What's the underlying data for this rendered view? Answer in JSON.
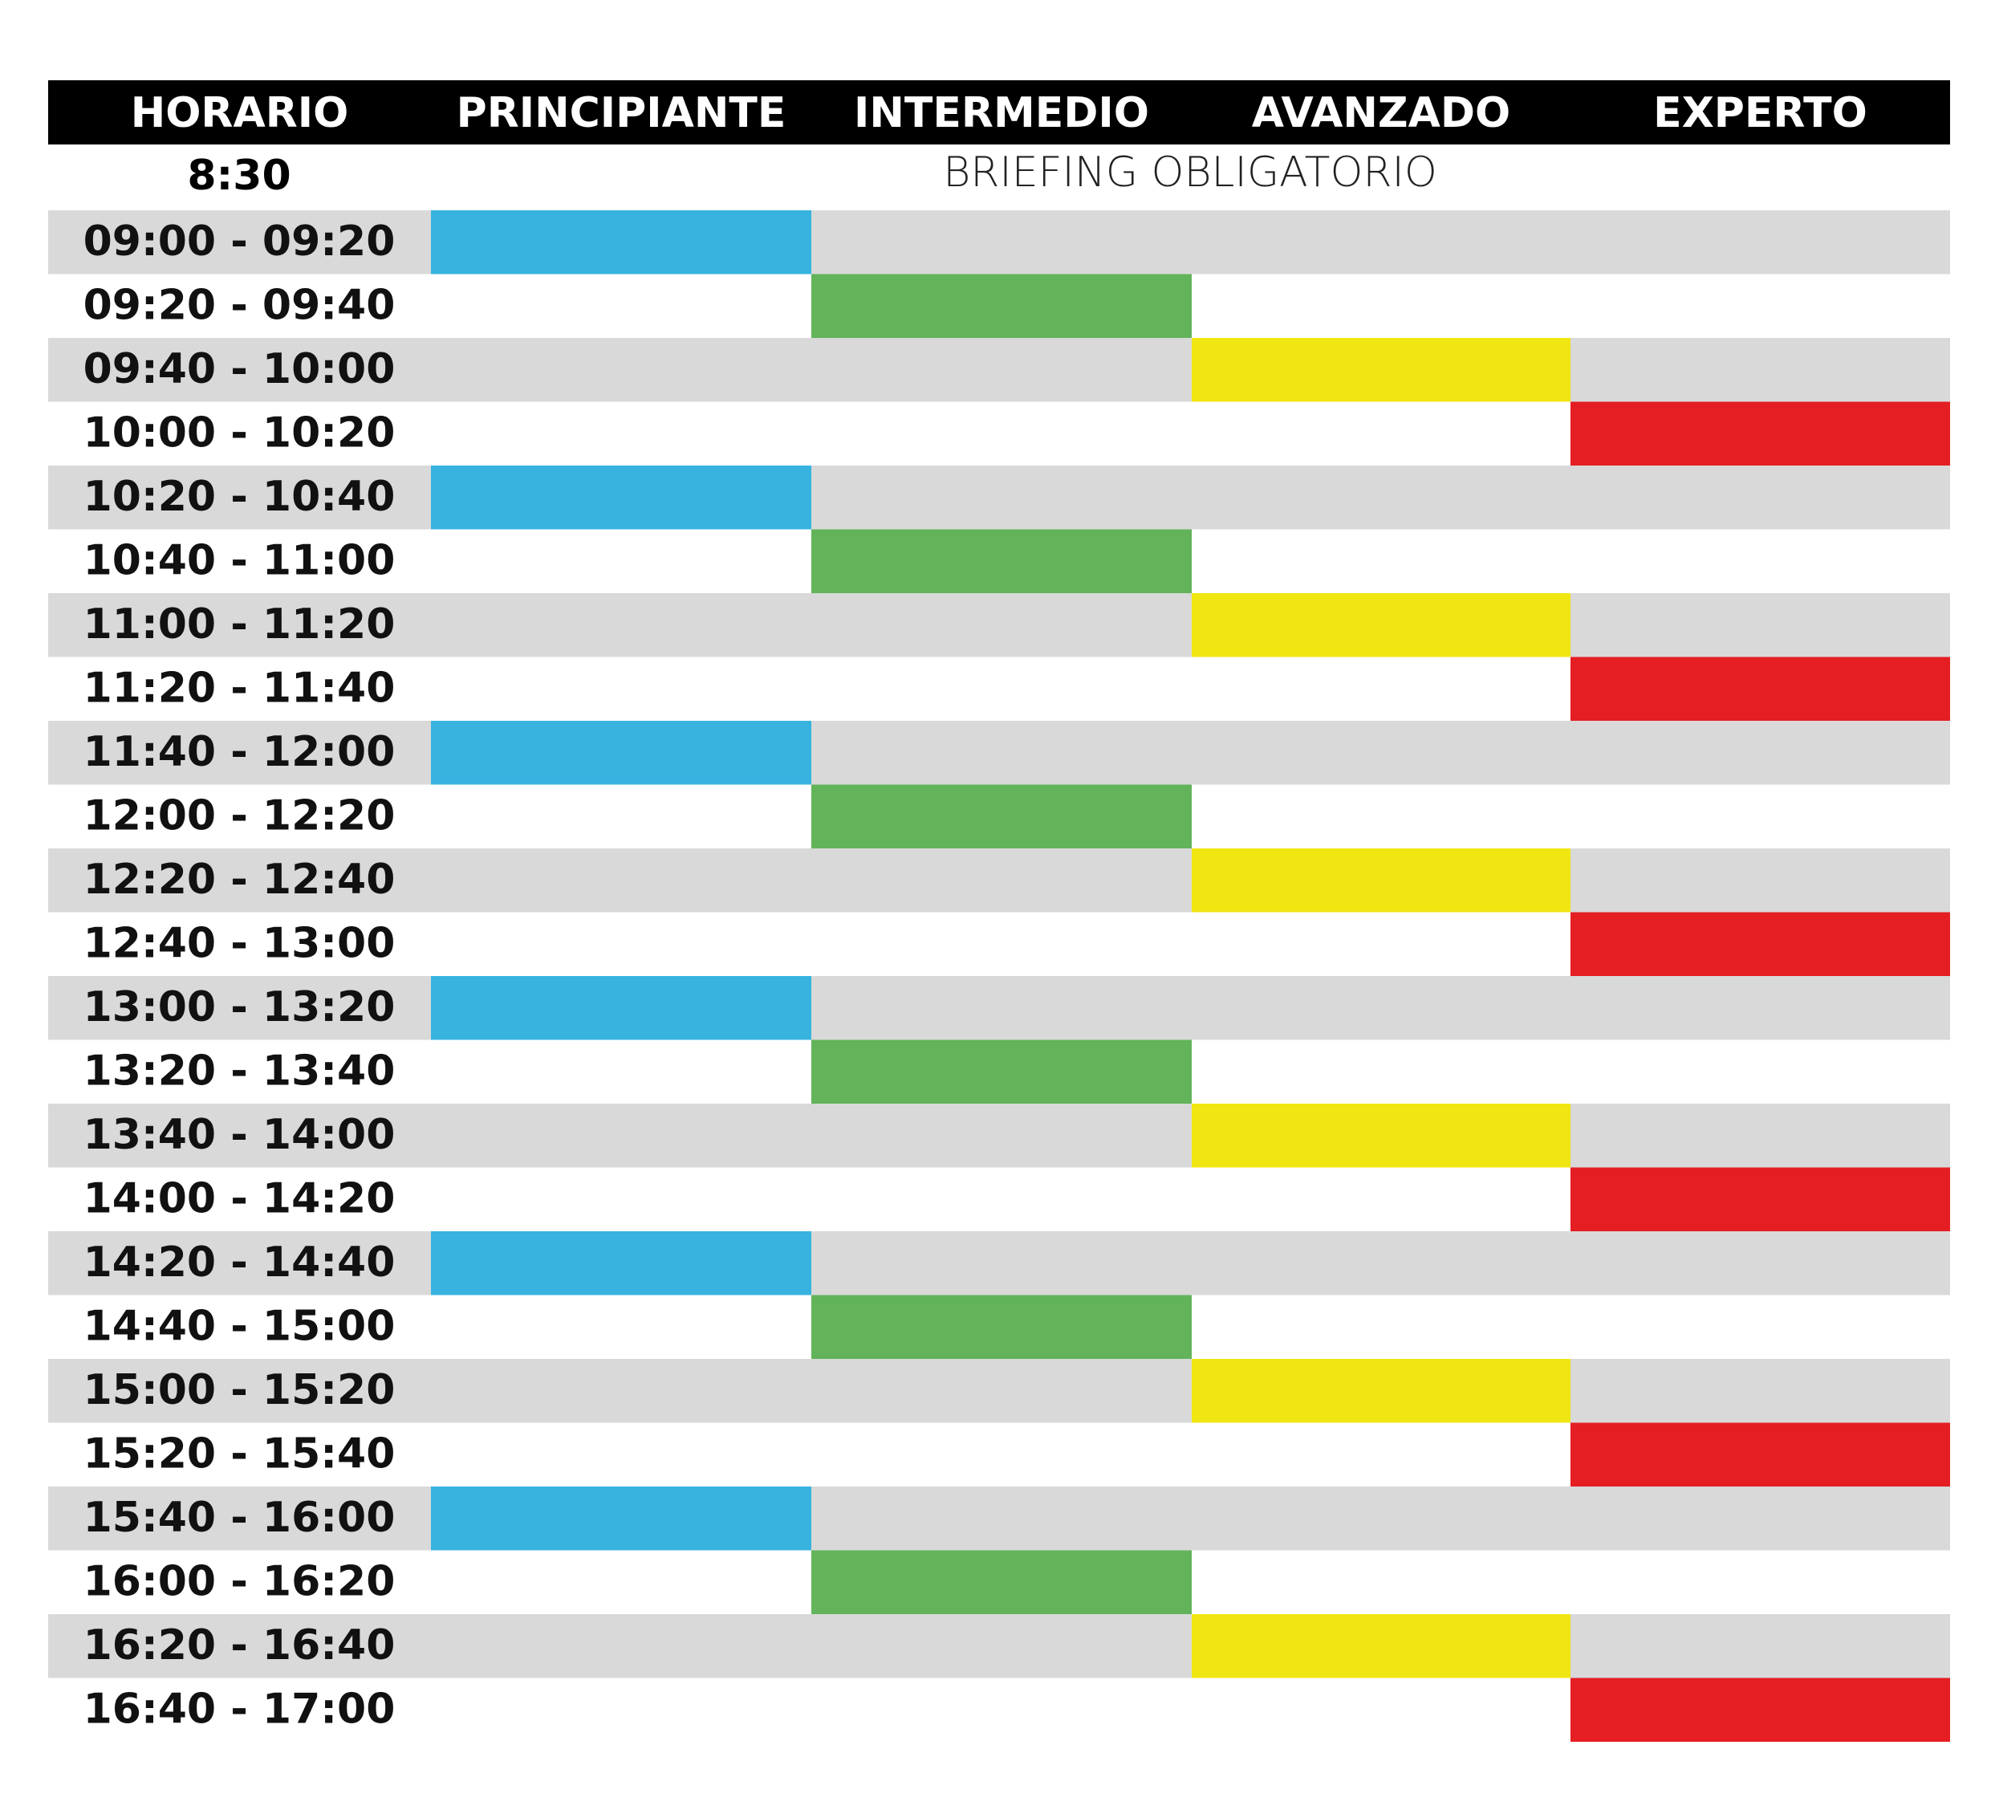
{
  "header": [
    "HORARIO",
    "PRINCIPIANTE",
    "INTERMEDIO",
    "AVANZADO",
    "EXPERTO"
  ],
  "briefing": {
    "time": "8:30",
    "text": "BRIEFING OBLIGATORIO"
  },
  "rows": [
    {
      "time": "09:00 - 09:20",
      "cells": [
        "#38b3e0",
        null,
        null,
        null
      ]
    },
    {
      "time": "09:20 - 09:40",
      "cells": [
        null,
        "#62b35a",
        null,
        null
      ]
    },
    {
      "time": "09:40 - 10:00",
      "cells": [
        null,
        null,
        "#f0e612",
        null
      ]
    },
    {
      "time": "10:00 - 10:20",
      "cells": [
        null,
        null,
        null,
        "#e41e22"
      ]
    },
    {
      "time": "10:20 - 10:40",
      "cells": [
        "#38b3e0",
        null,
        null,
        null
      ]
    },
    {
      "time": "10:40 - 11:00",
      "cells": [
        null,
        "#62b35a",
        null,
        null
      ]
    },
    {
      "time": "11:00 - 11:20",
      "cells": [
        null,
        null,
        "#f0e612",
        null
      ]
    },
    {
      "time": "11:20 - 11:40",
      "cells": [
        null,
        null,
        null,
        "#e41e22"
      ]
    },
    {
      "time": "11:40 - 12:00",
      "cells": [
        "#38b3e0",
        null,
        null,
        null
      ]
    },
    {
      "time": "12:00 - 12:20",
      "cells": [
        null,
        "#62b35a",
        null,
        null
      ]
    },
    {
      "time": "12:20 - 12:40",
      "cells": [
        null,
        null,
        "#f0e612",
        null
      ]
    },
    {
      "time": "12:40 - 13:00",
      "cells": [
        null,
        null,
        null,
        "#e41e22"
      ]
    },
    {
      "time": "13:00 - 13:20",
      "cells": [
        "#38b3e0",
        null,
        null,
        null
      ]
    },
    {
      "time": "13:20 - 13:40",
      "cells": [
        null,
        "#62b35a",
        null,
        null
      ]
    },
    {
      "time": "13:40 - 14:00",
      "cells": [
        null,
        null,
        "#f0e612",
        null
      ]
    },
    {
      "time": "14:00 - 14:20",
      "cells": [
        null,
        null,
        null,
        "#e41e22"
      ]
    },
    {
      "time": "14:20 - 14:40",
      "cells": [
        "#38b3e0",
        null,
        null,
        null
      ]
    },
    {
      "time": "14:40 - 15:00",
      "cells": [
        null,
        "#62b35a",
        null,
        null
      ]
    },
    {
      "time": "15:00 - 15:20",
      "cells": [
        null,
        null,
        "#f0e612",
        null
      ]
    },
    {
      "time": "15:20 - 15:40",
      "cells": [
        null,
        null,
        null,
        "#e41e22"
      ]
    },
    {
      "time": "15:40 - 16:00",
      "cells": [
        "#38b3e0",
        null,
        null,
        null
      ]
    },
    {
      "time": "16:00 - 16:20",
      "cells": [
        null,
        "#62b35a",
        null,
        null
      ]
    },
    {
      "time": "16:20 - 16:40",
      "cells": [
        null,
        null,
        "#f0e612",
        null
      ]
    },
    {
      "time": "16:40 - 17:00",
      "cells": [
        null,
        null,
        null,
        "#e41e22"
      ]
    }
  ]
}
